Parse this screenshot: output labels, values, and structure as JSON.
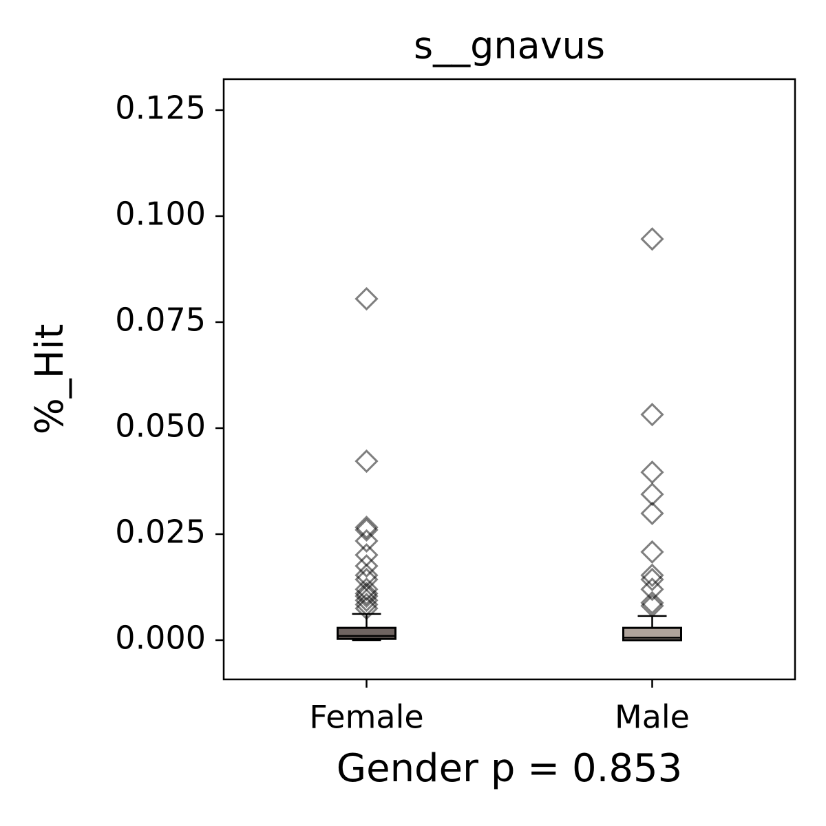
{
  "chart_data": {
    "type": "box",
    "title": "s__gnavus",
    "x_label": "Gender p = 0.853",
    "y_label": "%_Hit",
    "categories": [
      "Female",
      "Male"
    ],
    "boxes": [
      {
        "whislo": 0,
        "q1": 0.0003,
        "med": 0.001,
        "q3": 0.0029,
        "whishi": 0.0062,
        "color": "#6f6461",
        "fliers": [
          0.0805,
          0.0422,
          0.0266,
          0.026,
          0.0234,
          0.0201,
          0.0175,
          0.0153,
          0.0143,
          0.012,
          0.011,
          0.0104,
          0.0094,
          0.0084,
          0.0075
        ]
      },
      {
        "whislo": 0,
        "q1": 0,
        "med": 0.0006,
        "q3": 0.0029,
        "whishi": 0.0057,
        "color": "#b0a49c",
        "fliers": [
          0.0946,
          0.0532,
          0.0396,
          0.0344,
          0.0299,
          0.0208,
          0.0153,
          0.0143,
          0.012,
          0.0088,
          0.0081
        ]
      }
    ],
    "ylim": [
      -0.00925,
      0.1323
    ],
    "yticks": [
      {
        "value": 0,
        "label": "0.000"
      },
      0.025,
      {
        "value": 0.05,
        "label": "0.050"
      },
      0.075,
      {
        "value": 0.1,
        "label": "0.100"
      },
      0.125
    ]
  }
}
